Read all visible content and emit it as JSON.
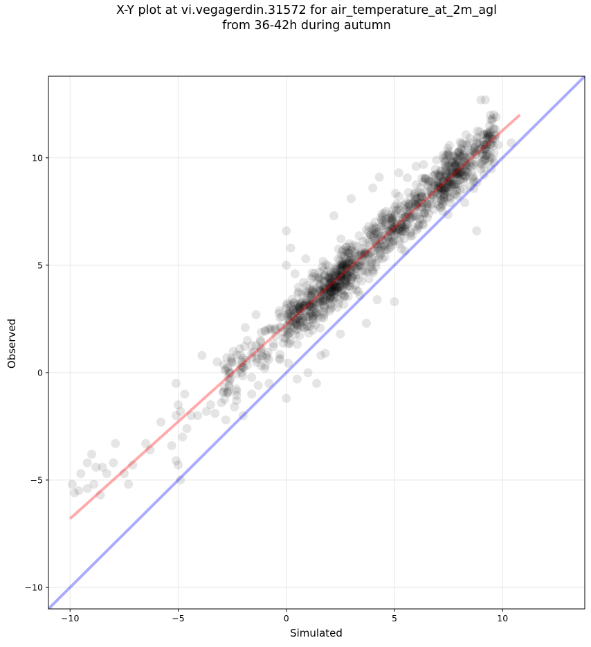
{
  "chart_data": {
    "type": "scatter",
    "title_lines": [
      "X-Y plot at vi.vegagerdin.31572 for air_temperature_at_2m_agl",
      "from 36-42h during autumn"
    ],
    "xlabel": "Simulated",
    "ylabel": "Observed",
    "xlim": [
      -11,
      13.8
    ],
    "ylim": [
      -11,
      13.8
    ],
    "xticks": [
      -10,
      -5,
      0,
      5,
      10
    ],
    "yticks": [
      -10,
      -5,
      0,
      5,
      10
    ],
    "grid": true,
    "point_color": "#000000",
    "point_alpha": 0.1,
    "identity_line": {
      "x": [
        -11,
        13.8
      ],
      "y": [
        -11,
        13.8
      ],
      "color": "#0000ff",
      "alpha": 0.33
    },
    "fit_line": {
      "x": [
        -10,
        10.8
      ],
      "y": [
        -6.8,
        12.0
      ],
      "color": "#ff0000",
      "alpha": 0.33
    },
    "series": [
      {
        "points": [
          [
            -9.8,
            -5.6
          ],
          [
            -9.6,
            -5.5
          ],
          [
            -9.9,
            -5.2
          ],
          [
            -9.5,
            -4.7
          ],
          [
            -9.2,
            -4.2
          ],
          [
            -9.0,
            -3.8
          ],
          [
            -8.8,
            -4.4
          ],
          [
            -8.5,
            -4.4
          ],
          [
            -8.3,
            -4.7
          ],
          [
            -8.6,
            -5.7
          ],
          [
            -8.9,
            -5.2
          ],
          [
            -9.2,
            -5.4
          ],
          [
            -8.0,
            -4.2
          ],
          [
            -7.9,
            -3.3
          ],
          [
            -7.5,
            -4.7
          ],
          [
            -7.3,
            -5.2
          ],
          [
            -7.1,
            -4.3
          ],
          [
            -6.3,
            -3.6
          ],
          [
            -6.5,
            -3.3
          ],
          [
            -5.8,
            -2.3
          ],
          [
            -5.3,
            -3.4
          ],
          [
            -5.1,
            -4.1
          ],
          [
            -5.0,
            -4.3
          ],
          [
            -4.9,
            -5.0
          ],
          [
            -5.1,
            -2.0
          ],
          [
            -5.0,
            -1.5
          ],
          [
            -5.1,
            -0.5
          ],
          [
            -4.9,
            -1.8
          ],
          [
            -4.7,
            -1.0
          ],
          [
            -4.6,
            -2.6
          ],
          [
            -4.8,
            -3.0
          ],
          [
            -4.4,
            -2.0
          ],
          [
            -4.1,
            -2.0
          ],
          [
            -3.9,
            0.8
          ],
          [
            -3.7,
            -1.8
          ],
          [
            -3.3,
            -1.9
          ],
          [
            -3.0,
            -1.4
          ],
          [
            -3.2,
            0.5
          ],
          [
            -2.8,
            -2.2
          ],
          [
            -2.6,
            0.0
          ],
          [
            -2.3,
            -1.3
          ],
          [
            -2.1,
            0.3
          ],
          [
            -1.8,
            1.5
          ],
          [
            -1.9,
            2.1
          ],
          [
            -1.6,
            0.9
          ],
          [
            -1.4,
            2.7
          ],
          [
            -1.2,
            1.5
          ],
          [
            -1.0,
            0.2
          ],
          [
            -0.9,
            0.7
          ],
          [
            -0.6,
            1.2
          ],
          [
            -0.5,
            2.0
          ],
          [
            -0.3,
            0.6
          ],
          [
            -0.2,
            2.6
          ],
          [
            -1.3,
            -0.6
          ],
          [
            -2.0,
            -2.0
          ],
          [
            -1.6,
            -1.0
          ],
          [
            -2.4,
            -1.6
          ],
          [
            -0.8,
            -0.5
          ],
          [
            -3.5,
            -1.5
          ],
          [
            0.0,
            6.6
          ],
          [
            0.0,
            5.0
          ],
          [
            0.2,
            5.8
          ],
          [
            0.4,
            4.6
          ],
          [
            0.0,
            -1.2
          ],
          [
            0.5,
            -0.3
          ],
          [
            1.0,
            0.0
          ],
          [
            1.4,
            -0.5
          ],
          [
            1.6,
            0.8
          ],
          [
            9.0,
            12.7
          ],
          [
            9.2,
            12.7
          ],
          [
            8.8,
            6.6
          ],
          [
            9.4,
            11.5
          ],
          [
            9.8,
            10.6
          ],
          [
            10.4,
            10.7
          ],
          [
            9.7,
            11.9
          ],
          [
            2.2,
            7.3
          ],
          [
            3.0,
            8.1
          ],
          [
            4.0,
            8.6
          ],
          [
            4.3,
            9.1
          ],
          [
            5.2,
            9.3
          ],
          [
            6.0,
            9.6
          ],
          [
            3.4,
            3.6
          ],
          [
            4.2,
            3.4
          ],
          [
            5.0,
            3.3
          ],
          [
            3.7,
            2.3
          ],
          [
            2.5,
            1.8
          ],
          [
            1.8,
            0.9
          ],
          [
            0.8,
            4.2
          ],
          [
            0.9,
            5.3
          ]
        ]
      }
    ]
  }
}
